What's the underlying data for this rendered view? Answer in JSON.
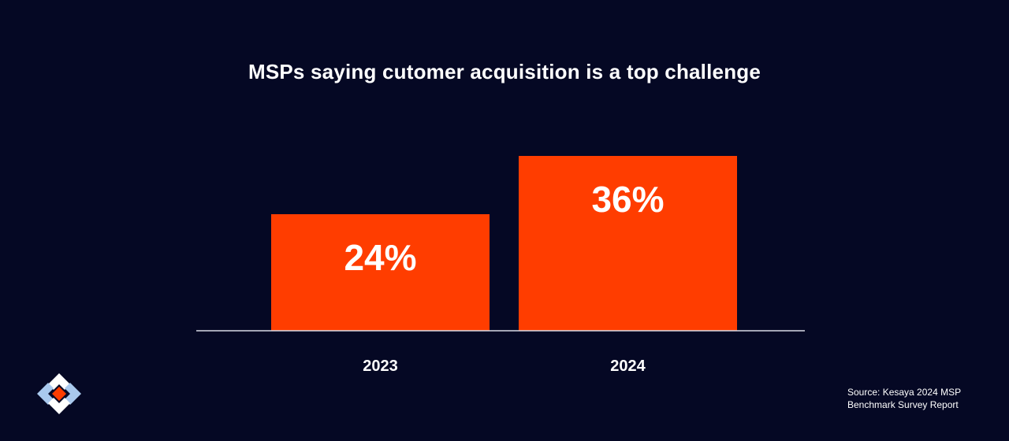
{
  "title": "MSPs saying cutomer acquisition is a top challenge",
  "source": {
    "line1": "Source: Kesaya 2024 MSP",
    "line2": "Benchmark Survey Report"
  },
  "colors": {
    "background": "#050824",
    "bar": "#ff3d00",
    "axis": "#d9dbe6",
    "text": "#ffffff",
    "logo_light": "#a9c9ee",
    "logo_white": "#ffffff",
    "logo_accent": "#ff3d00"
  },
  "logo": {
    "icon": "diamond-brackets-logo-icon"
  },
  "chart_data": {
    "type": "bar",
    "title": "MSPs saying cutomer acquisition is a top challenge",
    "categories": [
      "2023",
      "2024"
    ],
    "values": [
      24,
      36
    ],
    "data_labels": [
      "24%",
      "36%"
    ],
    "xlabel": "",
    "ylabel": "",
    "ylim": [
      0,
      36
    ],
    "grid": false,
    "legend": "none"
  }
}
